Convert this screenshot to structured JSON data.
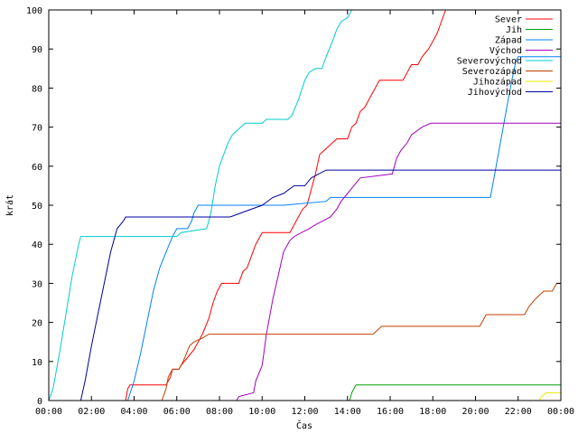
{
  "chart_data": {
    "type": "line",
    "title": "",
    "xlabel": "Čas",
    "ylabel": "krát",
    "xlim": [
      0,
      24
    ],
    "ylim": [
      0,
      100
    ],
    "x_tick_labels": [
      "00:00",
      "02:00",
      "04:00",
      "06:00",
      "08:00",
      "10:00",
      "12:00",
      "14:00",
      "16:00",
      "18:00",
      "20:00",
      "22:00",
      "00:00"
    ],
    "y_tick_labels": [
      "0",
      "10",
      "20",
      "30",
      "40",
      "50",
      "60",
      "70",
      "80",
      "90",
      "100"
    ],
    "grid": false,
    "legend_position": "top-right",
    "series": [
      {
        "name": "Sever",
        "color": "#ff0000",
        "points": [
          [
            0,
            0
          ],
          [
            3.6,
            0
          ],
          [
            3.7,
            3
          ],
          [
            3.8,
            4
          ],
          [
            4.1,
            4
          ],
          [
            5.5,
            4
          ],
          [
            5.7,
            6
          ],
          [
            5.8,
            8
          ],
          [
            6.1,
            8
          ],
          [
            6.2,
            9
          ],
          [
            6.5,
            11
          ],
          [
            6.8,
            13
          ],
          [
            7.0,
            15
          ],
          [
            7.2,
            17
          ],
          [
            7.5,
            21
          ],
          [
            7.7,
            25
          ],
          [
            7.9,
            28
          ],
          [
            8.1,
            30
          ],
          [
            8.9,
            30
          ],
          [
            9.1,
            33
          ],
          [
            9.3,
            34
          ],
          [
            9.5,
            37
          ],
          [
            9.7,
            40
          ],
          [
            9.9,
            42
          ],
          [
            10.0,
            43
          ],
          [
            11.3,
            43
          ],
          [
            11.5,
            45
          ],
          [
            11.7,
            47
          ],
          [
            11.9,
            49
          ],
          [
            12.1,
            50
          ],
          [
            12.3,
            54
          ],
          [
            12.5,
            58
          ],
          [
            12.7,
            63
          ],
          [
            12.9,
            64
          ],
          [
            13.1,
            65
          ],
          [
            13.3,
            66
          ],
          [
            13.5,
            67
          ],
          [
            14.0,
            67
          ],
          [
            14.2,
            70
          ],
          [
            14.4,
            71
          ],
          [
            14.6,
            74
          ],
          [
            14.8,
            75
          ],
          [
            15.0,
            77
          ],
          [
            15.2,
            79
          ],
          [
            15.4,
            81
          ],
          [
            15.5,
            82
          ],
          [
            16.6,
            82
          ],
          [
            16.8,
            84
          ],
          [
            17.0,
            86
          ],
          [
            17.3,
            86
          ],
          [
            17.5,
            88
          ],
          [
            17.8,
            90
          ],
          [
            18.0,
            92
          ],
          [
            18.2,
            94
          ],
          [
            18.4,
            97
          ],
          [
            18.6,
            100
          ]
        ]
      },
      {
        "name": "Jih",
        "color": "#00a000",
        "points": [
          [
            0,
            0
          ],
          [
            14.1,
            0
          ],
          [
            14.2,
            2
          ],
          [
            14.3,
            3
          ],
          [
            14.4,
            4
          ],
          [
            24,
            4
          ]
        ]
      },
      {
        "name": "Západ",
        "color": "#0080ff",
        "points": [
          [
            0,
            0
          ],
          [
            3.7,
            0
          ],
          [
            4.0,
            5
          ],
          [
            4.3,
            12
          ],
          [
            4.6,
            20
          ],
          [
            4.9,
            28
          ],
          [
            5.2,
            34
          ],
          [
            5.5,
            38
          ],
          [
            5.8,
            42
          ],
          [
            6.0,
            44
          ],
          [
            6.5,
            44
          ],
          [
            6.7,
            46
          ],
          [
            6.8,
            48
          ],
          [
            7.0,
            50
          ],
          [
            9.5,
            50
          ],
          [
            11.0,
            50
          ],
          [
            13.0,
            51
          ],
          [
            13.2,
            52
          ],
          [
            20.7,
            52
          ],
          [
            20.9,
            58
          ],
          [
            21.1,
            64
          ],
          [
            21.3,
            70
          ],
          [
            21.5,
            76
          ],
          [
            21.7,
            82
          ],
          [
            21.9,
            87
          ],
          [
            22.0,
            88
          ],
          [
            24,
            88
          ]
        ]
      },
      {
        "name": "Východ",
        "color": "#a000c0",
        "points": [
          [
            0,
            0
          ],
          [
            8.8,
            0
          ],
          [
            8.9,
            1
          ],
          [
            9.6,
            2
          ],
          [
            9.7,
            5
          ],
          [
            10.0,
            9
          ],
          [
            10.2,
            17
          ],
          [
            10.5,
            26
          ],
          [
            10.8,
            33
          ],
          [
            11.0,
            38
          ],
          [
            11.3,
            41
          ],
          [
            11.5,
            42
          ],
          [
            12.2,
            44
          ],
          [
            12.5,
            45
          ],
          [
            13.2,
            47
          ],
          [
            13.5,
            49
          ],
          [
            13.7,
            51
          ],
          [
            14.0,
            53
          ],
          [
            14.3,
            55
          ],
          [
            14.6,
            57
          ],
          [
            16.1,
            58
          ],
          [
            16.3,
            62
          ],
          [
            16.5,
            64
          ],
          [
            16.8,
            66
          ],
          [
            17.0,
            68
          ],
          [
            17.5,
            70
          ],
          [
            17.9,
            71
          ],
          [
            24,
            71
          ]
        ]
      },
      {
        "name": "Severovýchod",
        "color": "#00cccc",
        "points": [
          [
            0,
            0
          ],
          [
            0.2,
            3
          ],
          [
            0.5,
            12
          ],
          [
            0.8,
            22
          ],
          [
            1.1,
            32
          ],
          [
            1.4,
            40
          ],
          [
            1.5,
            42
          ],
          [
            6.0,
            42
          ],
          [
            6.2,
            43
          ],
          [
            7.4,
            44
          ],
          [
            7.6,
            48
          ],
          [
            7.8,
            55
          ],
          [
            8.0,
            60
          ],
          [
            8.2,
            63
          ],
          [
            8.4,
            66
          ],
          [
            8.6,
            68
          ],
          [
            8.8,
            69
          ],
          [
            9.0,
            70
          ],
          [
            9.2,
            71
          ],
          [
            10.0,
            71
          ],
          [
            10.2,
            72
          ],
          [
            11.2,
            72
          ],
          [
            11.4,
            73
          ],
          [
            11.7,
            77
          ],
          [
            12.0,
            82
          ],
          [
            12.2,
            84
          ],
          [
            12.5,
            85
          ],
          [
            12.8,
            85
          ],
          [
            13.0,
            88
          ],
          [
            13.3,
            92
          ],
          [
            13.5,
            95
          ],
          [
            13.7,
            97
          ],
          [
            14.0,
            98
          ],
          [
            14.2,
            100
          ]
        ]
      },
      {
        "name": "Severozápad",
        "color": "#c04000",
        "points": [
          [
            0,
            0
          ],
          [
            5.3,
            0
          ],
          [
            5.5,
            3
          ],
          [
            5.6,
            6
          ],
          [
            5.8,
            8
          ],
          [
            6.1,
            8
          ],
          [
            6.3,
            10
          ],
          [
            6.6,
            14
          ],
          [
            6.8,
            15
          ],
          [
            7.2,
            16
          ],
          [
            7.5,
            17
          ],
          [
            11.2,
            17
          ],
          [
            15.2,
            17
          ],
          [
            15.4,
            18
          ],
          [
            15.6,
            19
          ],
          [
            20.2,
            19
          ],
          [
            20.4,
            21
          ],
          [
            20.5,
            22
          ],
          [
            22.3,
            22
          ],
          [
            22.5,
            24
          ],
          [
            22.8,
            26
          ],
          [
            23.0,
            27
          ],
          [
            23.2,
            28
          ],
          [
            23.6,
            28
          ],
          [
            23.8,
            30
          ],
          [
            24,
            30
          ]
        ]
      },
      {
        "name": "Jihozápad",
        "color": "#e8e800",
        "points": [
          [
            0,
            0
          ],
          [
            23.0,
            0
          ],
          [
            23.1,
            1
          ],
          [
            23.3,
            2
          ],
          [
            24,
            2
          ]
        ]
      },
      {
        "name": "Jihovýchod",
        "color": "#0000a0",
        "points": [
          [
            0,
            0
          ],
          [
            1.5,
            0
          ],
          [
            1.7,
            5
          ],
          [
            2.0,
            14
          ],
          [
            2.3,
            22
          ],
          [
            2.6,
            30
          ],
          [
            2.9,
            38
          ],
          [
            3.2,
            44
          ],
          [
            3.5,
            46
          ],
          [
            3.6,
            47
          ],
          [
            8.5,
            47
          ],
          [
            9.0,
            48
          ],
          [
            10.0,
            50
          ],
          [
            10.5,
            52
          ],
          [
            11.0,
            53
          ],
          [
            11.5,
            55
          ],
          [
            12.0,
            55
          ],
          [
            12.3,
            57
          ],
          [
            13.0,
            59
          ],
          [
            20.0,
            59
          ],
          [
            24,
            59
          ]
        ]
      }
    ]
  }
}
